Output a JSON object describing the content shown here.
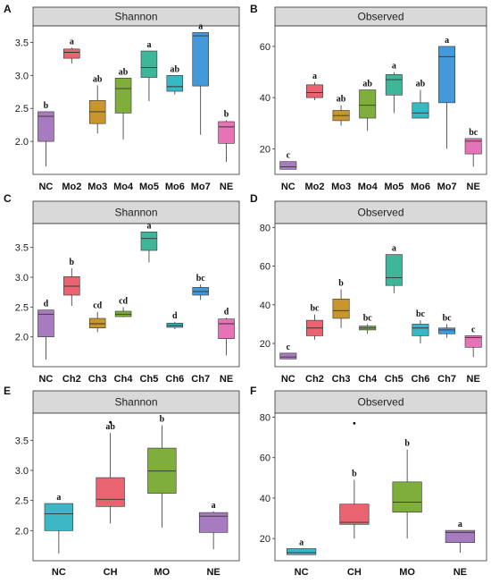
{
  "figure": {
    "colors": {
      "strip_fill": "#d9d9d9",
      "panel_bg": "#ffffff",
      "axis": "#333333",
      "whisker": "#333333"
    }
  },
  "chart_data": [
    {
      "id": "A",
      "letter": "A",
      "type": "box",
      "strip": "Shannon",
      "ylim": [
        1.5,
        3.75
      ],
      "yticks": [
        "2.0",
        "2.5",
        "3.0",
        "3.5"
      ],
      "categories": [
        "NC",
        "Mo2",
        "Mo3",
        "Mo4",
        "Mo5",
        "Mo6",
        "Mo7",
        "NE"
      ],
      "colors": [
        "#a77bbf",
        "#e96470",
        "#c9962e",
        "#7fae3c",
        "#3db69a",
        "#38b7c4",
        "#4499d9",
        "#e573b5"
      ],
      "boxes": [
        {
          "min": 1.62,
          "q1": 2.0,
          "median": 2.38,
          "q3": 2.45,
          "max": 2.45
        },
        {
          "min": 3.18,
          "q1": 3.26,
          "median": 3.35,
          "q3": 3.4,
          "max": 3.42
        },
        {
          "min": 2.12,
          "q1": 2.27,
          "median": 2.45,
          "q3": 2.62,
          "max": 2.85
        },
        {
          "min": 2.03,
          "q1": 2.43,
          "median": 2.8,
          "q3": 2.96,
          "max": 2.96
        },
        {
          "min": 2.61,
          "q1": 2.97,
          "median": 3.12,
          "q3": 3.37,
          "max": 3.37
        },
        {
          "min": 2.71,
          "q1": 2.76,
          "median": 2.83,
          "q3": 3.0,
          "max": 3.0
        },
        {
          "min": 2.1,
          "q1": 2.84,
          "median": 3.6,
          "q3": 3.65,
          "max": 3.65
        },
        {
          "min": 1.69,
          "q1": 1.97,
          "median": 2.22,
          "q3": 2.3,
          "max": 2.32
        }
      ],
      "labels": [
        "b",
        "a",
        "ab",
        "ab",
        "a",
        "ab",
        "a",
        "b"
      ]
    },
    {
      "id": "B",
      "letter": "B",
      "type": "box",
      "strip": "Observed",
      "ylim": [
        10,
        68
      ],
      "yticks": [
        "20",
        "40",
        "60"
      ],
      "categories": [
        "NC",
        "Mo2",
        "Mo3",
        "Mo4",
        "Mo5",
        "Mo6",
        "Mo7",
        "NE"
      ],
      "colors": [
        "#a77bbf",
        "#e96470",
        "#c9962e",
        "#7fae3c",
        "#3db69a",
        "#38b7c4",
        "#4499d9",
        "#e573b5"
      ],
      "boxes": [
        {
          "min": 12,
          "q1": 12,
          "median": 13,
          "q3": 15,
          "max": 15
        },
        {
          "min": 39,
          "q1": 40,
          "median": 42,
          "q3": 45,
          "max": 46
        },
        {
          "min": 29,
          "q1": 31,
          "median": 33,
          "q3": 35,
          "max": 37
        },
        {
          "min": 27,
          "q1": 32,
          "median": 37,
          "q3": 43,
          "max": 43
        },
        {
          "min": 34,
          "q1": 41,
          "median": 47,
          "q3": 49,
          "max": 50
        },
        {
          "min": 32,
          "q1": 32,
          "median": 34,
          "q3": 38,
          "max": 43
        },
        {
          "min": 20,
          "q1": 38,
          "median": 56,
          "q3": 60,
          "max": 60
        },
        {
          "min": 13,
          "q1": 18,
          "median": 23,
          "q3": 24,
          "max": 24
        }
      ],
      "labels": [
        "c",
        "a",
        "ab",
        "ab",
        "a",
        "ab",
        "a",
        "bc"
      ]
    },
    {
      "id": "C",
      "letter": "C",
      "type": "box",
      "strip": "Shannon",
      "ylim": [
        1.5,
        3.9
      ],
      "yticks": [
        "2.0",
        "2.5",
        "3.0",
        "3.5"
      ],
      "categories": [
        "NC",
        "Ch2",
        "Ch3",
        "Ch4",
        "Ch5",
        "Ch6",
        "Ch7",
        "NE"
      ],
      "colors": [
        "#a77bbf",
        "#e96470",
        "#c9962e",
        "#7fae3c",
        "#3db69a",
        "#38b7c4",
        "#4499d9",
        "#e573b5"
      ],
      "boxes": [
        {
          "min": 1.62,
          "q1": 2.0,
          "median": 2.38,
          "q3": 2.45,
          "max": 2.45
        },
        {
          "min": 2.52,
          "q1": 2.7,
          "median": 2.85,
          "q3": 3.01,
          "max": 3.15
        },
        {
          "min": 2.08,
          "q1": 2.15,
          "median": 2.22,
          "q3": 2.31,
          "max": 2.42
        },
        {
          "min": 2.33,
          "q1": 2.34,
          "median": 2.38,
          "q3": 2.43,
          "max": 2.5
        },
        {
          "min": 3.25,
          "q1": 3.45,
          "median": 3.65,
          "q3": 3.76,
          "max": 3.76
        },
        {
          "min": 2.13,
          "q1": 2.16,
          "median": 2.19,
          "q3": 2.23,
          "max": 2.25
        },
        {
          "min": 2.62,
          "q1": 2.7,
          "median": 2.76,
          "q3": 2.83,
          "max": 2.88
        },
        {
          "min": 1.69,
          "q1": 1.97,
          "median": 2.22,
          "q3": 2.3,
          "max": 2.32
        }
      ],
      "labels": [
        "d",
        "b",
        "cd",
        "cd",
        "a",
        "d",
        "bc",
        "d"
      ]
    },
    {
      "id": "D",
      "letter": "D",
      "type": "box",
      "strip": "Observed",
      "ylim": [
        8,
        82
      ],
      "yticks": [
        "20",
        "40",
        "60",
        "80"
      ],
      "categories": [
        "NC",
        "Ch2",
        "Ch3",
        "Ch4",
        "Ch5",
        "Ch6",
        "Ch7",
        "NE"
      ],
      "colors": [
        "#a77bbf",
        "#e96470",
        "#c9962e",
        "#7fae3c",
        "#3db69a",
        "#38b7c4",
        "#4499d9",
        "#e573b5"
      ],
      "boxes": [
        {
          "min": 12,
          "q1": 12,
          "median": 13,
          "q3": 15,
          "max": 15
        },
        {
          "min": 22,
          "q1": 24,
          "median": 28,
          "q3": 32,
          "max": 35
        },
        {
          "min": 28,
          "q1": 33,
          "median": 37,
          "q3": 43,
          "max": 48
        },
        {
          "min": 25,
          "q1": 27,
          "median": 28,
          "q3": 29,
          "max": 30
        },
        {
          "min": 46,
          "q1": 50,
          "median": 54,
          "q3": 66,
          "max": 66
        },
        {
          "min": 20,
          "q1": 24,
          "median": 28,
          "q3": 30,
          "max": 32
        },
        {
          "min": 23,
          "q1": 25,
          "median": 27,
          "q3": 28,
          "max": 30
        },
        {
          "min": 13,
          "q1": 18,
          "median": 23,
          "q3": 24,
          "max": 24
        }
      ],
      "labels": [
        "c",
        "bc",
        "b",
        "bc",
        "a",
        "bc",
        "bc",
        "c"
      ]
    },
    {
      "id": "E",
      "letter": "E",
      "type": "box",
      "strip": "Shannon",
      "ylim": [
        1.5,
        3.95
      ],
      "yticks": [
        "2.0",
        "2.5",
        "3.0",
        "3.5"
      ],
      "categories": [
        "NC",
        "CH",
        "MO",
        "NE"
      ],
      "colors": [
        "#3db6c6",
        "#e96470",
        "#7fae3c",
        "#a77bbf"
      ],
      "boxes": [
        {
          "min": 1.62,
          "q1": 2.0,
          "median": 2.28,
          "q3": 2.45,
          "max": 2.45
        },
        {
          "min": 2.12,
          "q1": 2.4,
          "median": 2.52,
          "q3": 2.88,
          "max": 3.62,
          "outliers": [
            3.8
          ]
        },
        {
          "min": 2.05,
          "q1": 2.62,
          "median": 2.99,
          "q3": 3.37,
          "max": 3.75
        },
        {
          "min": 1.69,
          "q1": 1.97,
          "median": 2.24,
          "q3": 2.3,
          "max": 2.32
        }
      ],
      "labels": [
        "a",
        "ab",
        "b",
        "a"
      ]
    },
    {
      "id": "F",
      "letter": "F",
      "type": "box",
      "strip": "Observed",
      "ylim": [
        9,
        82
      ],
      "yticks": [
        "20",
        "40",
        "60",
        "80"
      ],
      "categories": [
        "NC",
        "CH",
        "MO",
        "NE"
      ],
      "colors": [
        "#3db6c6",
        "#e96470",
        "#7fae3c",
        "#a77bbf"
      ],
      "boxes": [
        {
          "min": 12,
          "q1": 12,
          "median": 13,
          "q3": 15,
          "max": 15
        },
        {
          "min": 20,
          "q1": 27,
          "median": 28,
          "q3": 37,
          "max": 49,
          "outliers": [
            77
          ]
        },
        {
          "min": 20,
          "q1": 33,
          "median": 38,
          "q3": 48,
          "max": 64
        },
        {
          "min": 13,
          "q1": 18,
          "median": 23,
          "q3": 24,
          "max": 24
        }
      ],
      "labels": [
        "a",
        "b",
        "b",
        "a"
      ]
    }
  ]
}
